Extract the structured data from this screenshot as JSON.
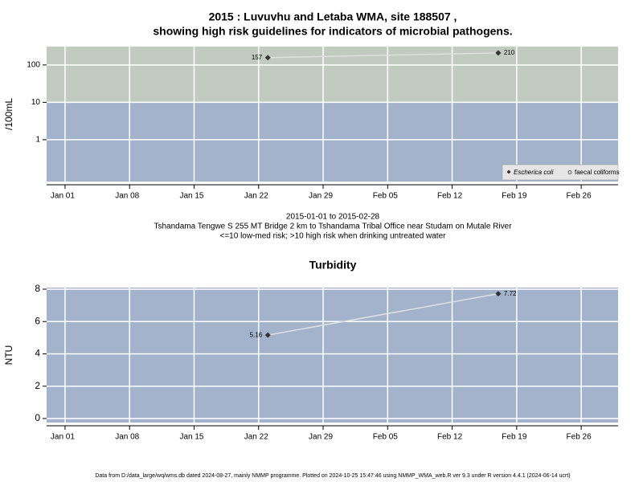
{
  "chart_data": [
    {
      "type": "line",
      "title": [
        "2015 : Luvuvhu and Letaba WMA, site 188507 ,",
        "showing high risk guidelines for indicators of microbial pathogens."
      ],
      "ylabel": "/100mL",
      "notes": [
        "2015-01-01 to 2015-02-28",
        "Tshandama Tengwe S 255 MT Bridge 2 km to Tshandama Tribal Office near Studam on Mutale River",
        "<=10 low-med risk; >10 high risk when drinking untreated water"
      ],
      "x": [
        "2015-01-23",
        "2015-02-17"
      ],
      "series": [
        {
          "name": "Escherica coli",
          "color": "#333333",
          "line_color": "#e0e0e0",
          "marker": "diamond",
          "values": [
            157,
            210
          ]
        },
        {
          "name": "faecal coliforms",
          "color": "#333333",
          "marker": "circle-open",
          "values": [
            null,
            null
          ]
        }
      ],
      "log_y": true,
      "ylim": [
        0.076,
        310
      ],
      "yticks": [
        1,
        10,
        100
      ],
      "xlim": [
        "2014-12-30",
        "2015-03-02"
      ],
      "xticks": [
        {
          "value": "2015-01-01",
          "label": "Jan 01"
        },
        {
          "value": "2015-01-08",
          "label": "Jan 08"
        },
        {
          "value": "2015-01-15",
          "label": "Jan 15"
        },
        {
          "value": "2015-01-22",
          "label": "Jan 22"
        },
        {
          "value": "2015-01-29",
          "label": "Jan 29"
        },
        {
          "value": "2015-02-05",
          "label": "Feb 05"
        },
        {
          "value": "2015-02-12",
          "label": "Feb 12"
        },
        {
          "value": "2015-02-19",
          "label": "Feb 19"
        },
        {
          "value": "2015-02-26",
          "label": "Feb 26"
        }
      ],
      "high_risk_threshold": 10,
      "high_color": "#c2cbbf",
      "low_color": "#a2b3cb",
      "grid": true,
      "legend": "bottom-right"
    },
    {
      "type": "line",
      "title": [
        "Turbidity"
      ],
      "ylabel": "NTU",
      "x": [
        "2015-01-23",
        "2015-02-17"
      ],
      "series": [
        {
          "color": "#333333",
          "line_color": "#e0e0e0",
          "marker": "diamond",
          "values": [
            5.16,
            7.72
          ]
        }
      ],
      "log_y": false,
      "ylim": [
        -0.25,
        8.1
      ],
      "yticks": [
        0,
        2,
        4,
        6,
        8
      ],
      "xlim": [
        "2014-12-30",
        "2015-03-02"
      ],
      "xticks": [
        {
          "value": "2015-01-01",
          "label": "Jan 01"
        },
        {
          "value": "2015-01-08",
          "label": "Jan 08"
        },
        {
          "value": "2015-01-15",
          "label": "Jan 15"
        },
        {
          "value": "2015-01-22",
          "label": "Jan 22"
        },
        {
          "value": "2015-01-29",
          "label": "Jan 29"
        },
        {
          "value": "2015-02-05",
          "label": "Feb 05"
        },
        {
          "value": "2015-02-12",
          "label": "Feb 12"
        },
        {
          "value": "2015-02-19",
          "label": "Feb 19"
        },
        {
          "value": "2015-02-26",
          "label": "Feb 26"
        }
      ],
      "low_color": "#a2b3cb",
      "grid": true
    }
  ],
  "footer": "Data from D:/data_large/wq/wms.db dated 2024-08-27, mainly NMMP programme. Plotted on 2024-10-25 15:47:46 using NMMP_WMA_web.R ver 9.3 under R version 4.4.1 (2024-06-14 ucrt)"
}
